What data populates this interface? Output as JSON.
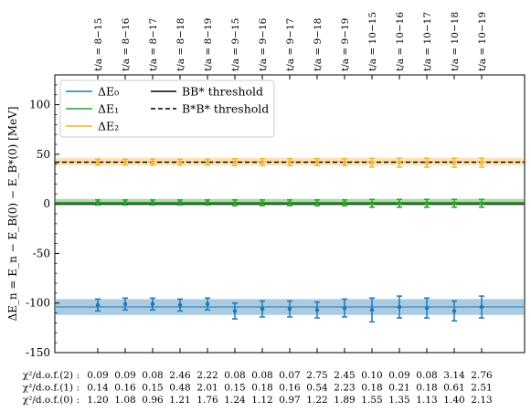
{
  "chart_data": {
    "type": "scatter",
    "ylabel": "ΔE_n = E_n − E_B(0) − E_B*(0) [MeV]",
    "ylim": [
      -150,
      130
    ],
    "yticks": [
      -150,
      -100,
      -50,
      0,
      50,
      100
    ],
    "grid": false,
    "legend_placement": "top-left",
    "categories": [
      "t/a = 8−15",
      "t/a = 8−16",
      "t/a = 8−17",
      "t/a = 8−18",
      "t/a = 8−19",
      "t/a = 9−15",
      "t/a = 9−16",
      "t/a = 9−17",
      "t/a = 9−18",
      "t/a = 9−19",
      "t/a = 10−15",
      "t/a = 10−16",
      "t/a = 10−17",
      "t/a = 10−18",
      "t/a = 10−19"
    ],
    "series": [
      {
        "name": "ΔE₀",
        "color": "#1f77b4",
        "band": [
          -112,
          -96
        ],
        "values": [
          -102,
          -101,
          -101,
          -102,
          -101,
          -108,
          -106,
          -106,
          -107,
          -105,
          -107,
          -104,
          -105,
          -108,
          -104
        ],
        "errors": [
          6,
          6,
          6,
          6,
          6,
          8,
          8,
          8,
          8,
          9,
          12,
          11,
          10,
          10,
          11
        ]
      },
      {
        "name": "ΔE₁",
        "color": "#2ca02c",
        "band": [
          -2,
          5
        ],
        "values": [
          1.5,
          1.5,
          1.5,
          1.5,
          1.5,
          1.0,
          1.0,
          1.0,
          1.0,
          1.0,
          0.5,
          0.5,
          0.5,
          0.5,
          0.5
        ],
        "errors": [
          2.5,
          2.5,
          2.5,
          2.5,
          2.5,
          3,
          3,
          3,
          3,
          3,
          4,
          4,
          4,
          4,
          4
        ]
      },
      {
        "name": "ΔE₂",
        "color": "#f5b335",
        "band": [
          38.5,
          46.5
        ],
        "values": [
          42,
          42,
          42,
          42,
          42,
          42,
          42,
          42,
          42,
          42,
          41.5,
          41.5,
          41.5,
          41.5,
          41.5
        ],
        "errors": [
          3,
          3,
          3,
          3,
          3,
          3.5,
          3.5,
          3.5,
          3.5,
          3.5,
          4.5,
          4.5,
          4.5,
          4.5,
          4.5
        ]
      }
    ],
    "thresholds": [
      {
        "name": "BB* threshold",
        "value": 0,
        "style": "solid"
      },
      {
        "name": "B*B* threshold",
        "value": 42,
        "style": "dashed"
      }
    ],
    "chi2_rows": [
      {
        "label": "χ²/d.o.f.(2) :",
        "values": [
          "0.09",
          "0.09",
          "0.08",
          "2.46",
          "2.22",
          "0.08",
          "0.08",
          "0.07",
          "2.75",
          "2.45",
          "0.10",
          "0.09",
          "0.08",
          "3.14",
          "2.76"
        ]
      },
      {
        "label": "χ²/d.o.f.(1) :",
        "values": [
          "0.14",
          "0.16",
          "0.15",
          "0.48",
          "2.01",
          "0.15",
          "0.18",
          "0.16",
          "0.54",
          "2.23",
          "0.18",
          "0.21",
          "0.18",
          "0.61",
          "2.51"
        ]
      },
      {
        "label": "χ²/d.o.f.(0) :",
        "values": [
          "1.20",
          "1.08",
          "0.96",
          "1.21",
          "1.76",
          "1.24",
          "1.12",
          "0.97",
          "1.22",
          "1.89",
          "1.55",
          "1.35",
          "1.13",
          "1.40",
          "2.13"
        ]
      }
    ]
  }
}
